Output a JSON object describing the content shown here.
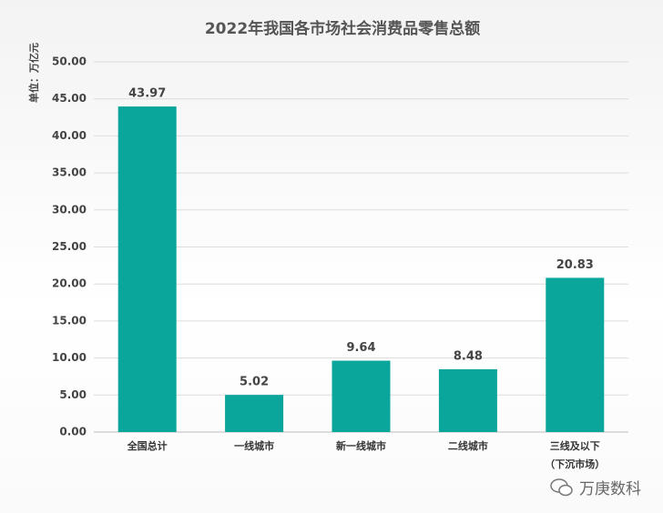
{
  "chart_data": {
    "type": "bar",
    "title": "2022年我国各市场社会消费品零售总额",
    "y_label": "单位：万亿元",
    "categories": [
      "全国总计",
      "一线城市",
      "新一线城市",
      "二线城市",
      "三线及以下\n（下沉市场）"
    ],
    "values": [
      43.97,
      5.02,
      9.64,
      8.48,
      20.83
    ],
    "color": "#0ba69b",
    "ylim": [
      0,
      50
    ],
    "yticks": [
      {
        "value": 0,
        "label": "0.00"
      },
      {
        "value": 5,
        "label": "5.00"
      },
      {
        "value": 10,
        "label": "10.00"
      },
      {
        "value": 15,
        "label": "15.00"
      },
      {
        "value": 20,
        "label": "20.00"
      },
      {
        "value": 25,
        "label": "25.00"
      },
      {
        "value": 30,
        "label": "30.00"
      },
      {
        "value": 35,
        "label": "35.00"
      },
      {
        "value": 40,
        "label": "40.00"
      },
      {
        "value": 45,
        "label": "45.00"
      },
      {
        "value": 50,
        "label": "50.00"
      }
    ],
    "grid": true,
    "watermark": "万庚数科"
  }
}
